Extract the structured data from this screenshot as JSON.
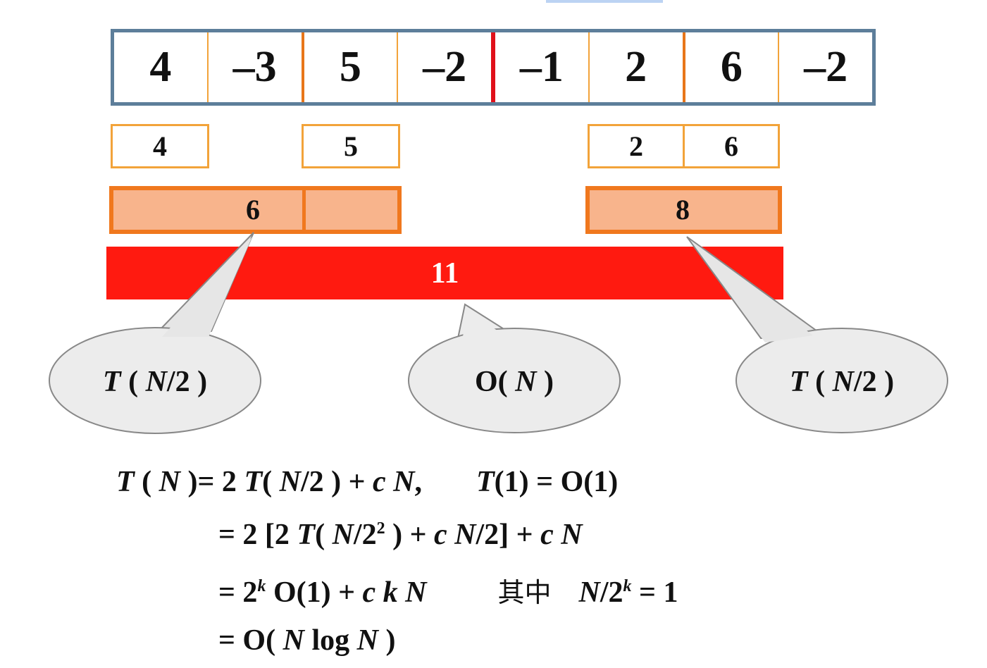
{
  "array": [
    "4",
    "–3",
    "5",
    "–2",
    "–1",
    "2",
    "6",
    "–2"
  ],
  "small_left": [
    "4"
  ],
  "small_mid": [
    "5"
  ],
  "small_right": [
    "2",
    "6"
  ],
  "left_sum": "6",
  "right_sum": "8",
  "cross_sum": "11",
  "callouts": {
    "left": {
      "fn": "T",
      "open": "(",
      "arg": "N",
      "div": "/2",
      "close": ")"
    },
    "mid": {
      "fn": "O(",
      "arg": "N",
      "close": ")"
    },
    "right": {
      "fn": "T",
      "open": "(",
      "arg": "N",
      "div": "/2",
      "close": ")"
    }
  },
  "equations": {
    "line1": {
      "a": "T",
      "b": "(",
      "c": "N",
      "d": ")",
      "e": "= 2",
      "f": "T",
      "g": "(",
      "h": "N",
      "i": "/2 ) +",
      "j": "c N",
      "k": ",",
      "l": "T",
      "m": "(1) = O(1)"
    },
    "line2": {
      "a": "= 2 [2",
      "b": "T",
      "c": "(",
      "d": "N",
      "e": "/2",
      "f": "2",
      "g": ") +",
      "h": "c N",
      "i": "/2] +",
      "j": "c N"
    },
    "line3": {
      "a": "= 2",
      "b": "k",
      "c": "O(1) +",
      "d": "c k N",
      "e": "其中",
      "f": "N",
      "g": "/2",
      "h": "k",
      "i": "= 1"
    },
    "line4": {
      "a": "= O(",
      "b": "N",
      "c": "log",
      "d": "N",
      "e": ")"
    }
  },
  "colors": {
    "array_border": "#5d7e9a",
    "orange": "#f0781e",
    "orange_fill": "#f8b48c",
    "red": "#ff1a10",
    "bubble_fill": "#eeeeee"
  }
}
